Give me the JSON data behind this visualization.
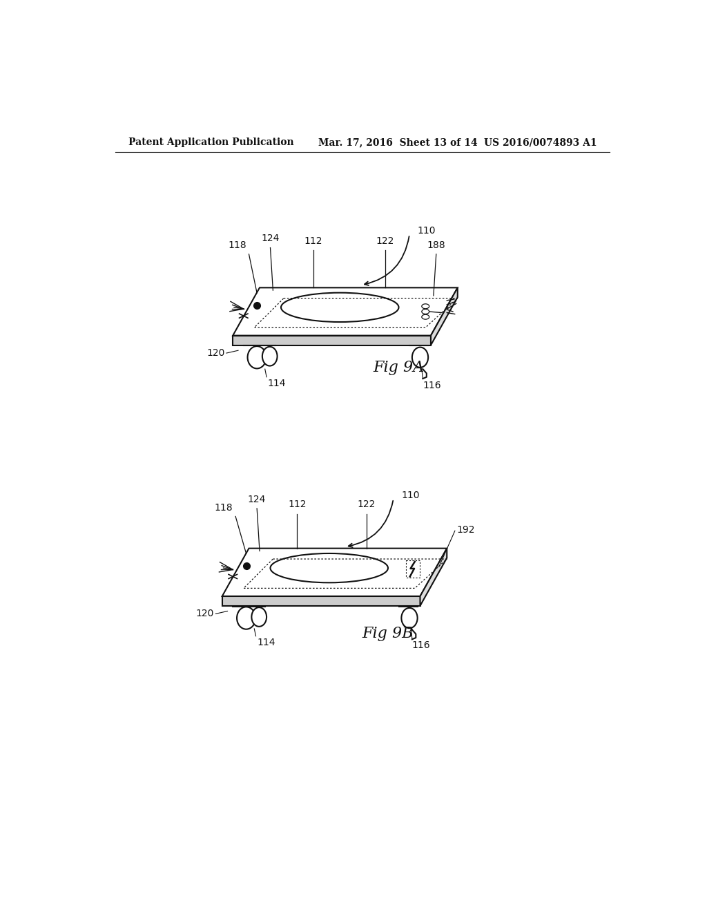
{
  "background_color": "#ffffff",
  "header_left": "Patent Application Publication",
  "header_center": "Mar. 17, 2016  Sheet 13 of 14",
  "header_right": "US 2016/0074893 A1",
  "fig9a_label": "Fig 9A",
  "fig9b_label": "Fig 9B"
}
